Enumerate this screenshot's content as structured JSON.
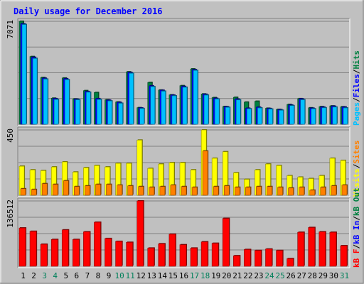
{
  "chart_data": {
    "type": "bar",
    "title": "Daily usage for December 2016",
    "categories": [
      "1",
      "2",
      "3",
      "4",
      "5",
      "6",
      "7",
      "8",
      "9",
      "10",
      "11",
      "12",
      "13",
      "14",
      "15",
      "16",
      "17",
      "18",
      "19",
      "20",
      "21",
      "22",
      "23",
      "24",
      "25",
      "26",
      "27",
      "28",
      "29",
      "30",
      "31"
    ],
    "weekend_categories": [
      "3",
      "4",
      "10",
      "11",
      "17",
      "18",
      "24",
      "25",
      "31"
    ],
    "panels": [
      {
        "id": "hits-files-pages",
        "ymax_label": "7071",
        "ylim": [
          0,
          7071
        ],
        "legend": [
          {
            "text": "Pages",
            "color": "#00c0ff"
          },
          {
            "text": "/",
            "color": "#000000"
          },
          {
            "text": "Files",
            "color": "#0000ff"
          },
          {
            "text": "/",
            "color": "#000000"
          },
          {
            "text": "Hits",
            "color": "#008040"
          }
        ],
        "series": [
          {
            "name": "Hits",
            "color": "#008040",
            "values": [
              7071,
              4650,
              3210,
              1790,
              3175,
              1740,
              2310,
              2180,
              1680,
              1530,
              3600,
              1140,
              2870,
              2350,
              2020,
              2650,
              3800,
              2080,
              1830,
              1220,
              1850,
              1520,
              1580,
              1100,
              1020,
              1360,
              1760,
              1130,
              1210,
              1260,
              1200
            ]
          },
          {
            "name": "Files",
            "color": "#0000ff",
            "values": [
              6900,
              4600,
              3160,
              1760,
              3125,
              1720,
              2250,
              1760,
              1650,
              1500,
              3560,
              1120,
              2640,
              2330,
              2000,
              2600,
              3750,
              2060,
              1780,
              1200,
              1730,
              1100,
              1170,
              1080,
              1000,
              1320,
              1740,
              1100,
              1180,
              1240,
              1180
            ]
          },
          {
            "name": "Pages",
            "color": "#00c0ff",
            "values": [
              6850,
              4520,
              3100,
              1700,
              3060,
              1680,
              2200,
              1700,
              1600,
              1440,
              3500,
              1080,
              2580,
              2270,
              1950,
              2540,
              3700,
              2000,
              1730,
              1160,
              1670,
              1060,
              1120,
              1040,
              960,
              1280,
              1680,
              1060,
              1130,
              1180,
              1120
            ]
          }
        ]
      },
      {
        "id": "visits-sites",
        "ymax_label": "450",
        "ylim": [
          0,
          450
        ],
        "legend": [
          {
            "text": "Visits",
            "color": "#ffff00"
          },
          {
            "text": "/",
            "color": "#000000"
          },
          {
            "text": "Sites",
            "color": "#ff8000"
          }
        ],
        "series": [
          {
            "name": "Visits",
            "color": "#ffff00",
            "values": [
              200,
              175,
              170,
              195,
              230,
              160,
              190,
              205,
              195,
              220,
              220,
              380,
              185,
              215,
              225,
              225,
              175,
              450,
              255,
              300,
              155,
              110,
              175,
              215,
              205,
              135,
              125,
              115,
              135,
              255,
              240
            ]
          },
          {
            "name": "Sites",
            "color": "#ff8000",
            "values": [
              45,
              40,
              80,
              75,
              100,
              60,
              65,
              75,
              75,
              70,
              65,
              60,
              55,
              60,
              70,
              60,
              55,
              305,
              60,
              65,
              55,
              55,
              60,
              60,
              55,
              50,
              55,
              35,
              55,
              65,
              70
            ]
          }
        ]
      },
      {
        "id": "kb",
        "ymax_label": "136512",
        "ylim": [
          0,
          136512
        ],
        "legend": [
          {
            "text": "kB F",
            "color": "#ff0000"
          },
          {
            "text": "/",
            "color": "#000000"
          },
          {
            "text": "kB In",
            "color": "#0000ff"
          },
          {
            "text": "/",
            "color": "#000000"
          },
          {
            "text": "kB Out",
            "color": "#008040"
          }
        ],
        "series": [
          {
            "name": "kB F",
            "color": "#ff0000",
            "values": [
              80000,
              73000,
              46000,
              56000,
              76000,
              56000,
              72000,
              92000,
              58000,
              52000,
              50000,
              136512,
              38000,
              47000,
              67000,
              45000,
              38000,
              51000,
              48000,
              100000,
              22000,
              35000,
              33000,
              36000,
              33000,
              16000,
              71000,
              81000,
              72000,
              71000,
              43000
            ]
          }
        ]
      }
    ]
  }
}
